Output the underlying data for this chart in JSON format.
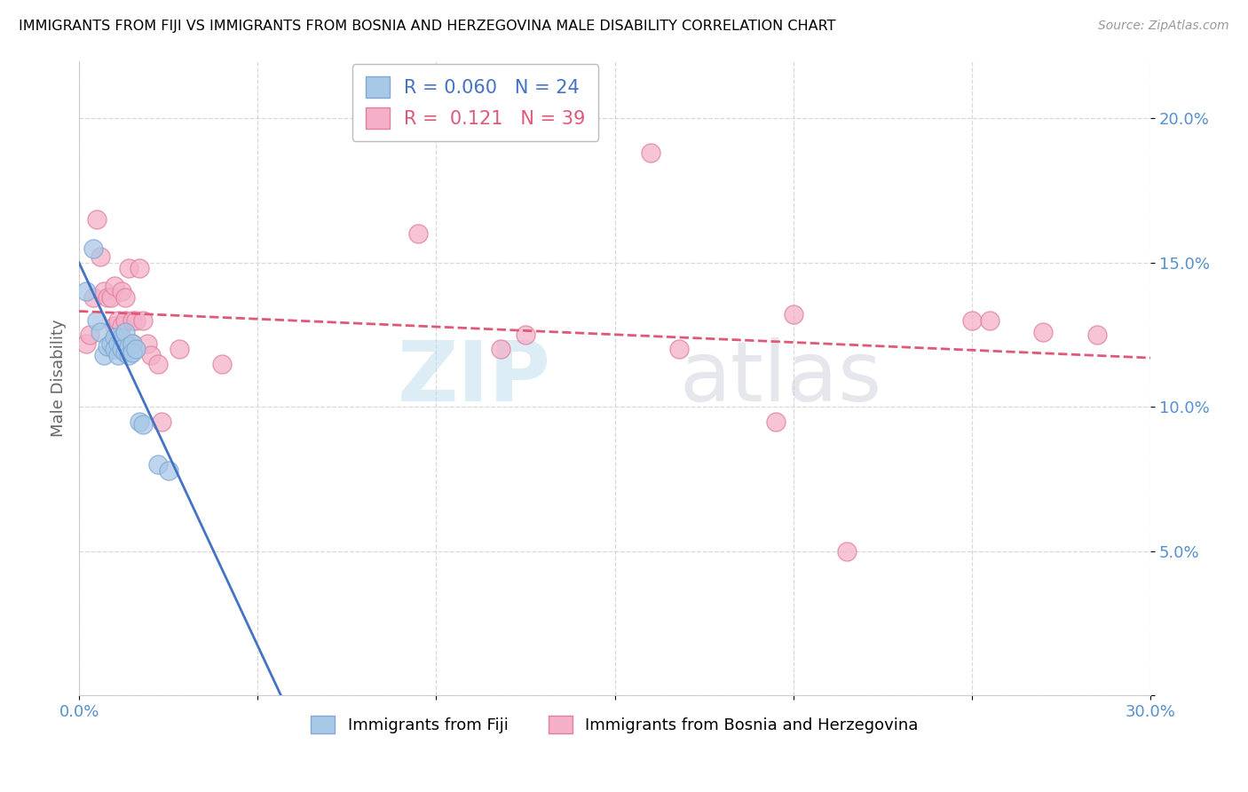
{
  "title": "IMMIGRANTS FROM FIJI VS IMMIGRANTS FROM BOSNIA AND HERZEGOVINA MALE DISABILITY CORRELATION CHART",
  "source": "Source: ZipAtlas.com",
  "ylabel": "Male Disability",
  "xlim": [
    0.0,
    0.3
  ],
  "ylim": [
    0.0,
    0.22
  ],
  "xtick_positions": [
    0.0,
    0.05,
    0.1,
    0.15,
    0.2,
    0.25,
    0.3
  ],
  "xtick_labels": [
    "0.0%",
    "",
    "",
    "",
    "",
    "",
    "30.0%"
  ],
  "ytick_positions": [
    0.0,
    0.05,
    0.1,
    0.15,
    0.2
  ],
  "ytick_labels": [
    "",
    "5.0%",
    "10.0%",
    "15.0%",
    "20.0%"
  ],
  "legend_fiji_r": "0.060",
  "legend_fiji_n": "24",
  "legend_bh_r": "0.121",
  "legend_bh_n": "39",
  "fiji_color": "#a8c8e8",
  "fiji_edge_color": "#80a8d0",
  "bh_color": "#f4b0c8",
  "bh_edge_color": "#e080a0",
  "fiji_line_color": "#4472c4",
  "bh_line_color": "#e05878",
  "tick_color": "#5590d0",
  "background_color": "#ffffff",
  "grid_color": "#d8d8d8",
  "fiji_x": [
    0.002,
    0.004,
    0.005,
    0.006,
    0.007,
    0.008,
    0.009,
    0.01,
    0.01,
    0.011,
    0.011,
    0.012,
    0.012,
    0.013,
    0.013,
    0.014,
    0.014,
    0.015,
    0.015,
    0.016,
    0.017,
    0.018,
    0.022,
    0.025
  ],
  "fiji_y": [
    0.14,
    0.155,
    0.13,
    0.126,
    0.118,
    0.121,
    0.122,
    0.124,
    0.12,
    0.122,
    0.118,
    0.124,
    0.12,
    0.119,
    0.126,
    0.121,
    0.118,
    0.122,
    0.119,
    0.12,
    0.095,
    0.094,
    0.08,
    0.078
  ],
  "bh_x": [
    0.002,
    0.003,
    0.004,
    0.005,
    0.006,
    0.007,
    0.008,
    0.009,
    0.01,
    0.01,
    0.011,
    0.012,
    0.012,
    0.013,
    0.013,
    0.014,
    0.015,
    0.015,
    0.016,
    0.017,
    0.018,
    0.019,
    0.02,
    0.022,
    0.023,
    0.028,
    0.04,
    0.095,
    0.118,
    0.125,
    0.16,
    0.168,
    0.195,
    0.2,
    0.215,
    0.25,
    0.255,
    0.27,
    0.285
  ],
  "bh_y": [
    0.122,
    0.125,
    0.138,
    0.165,
    0.152,
    0.14,
    0.138,
    0.138,
    0.128,
    0.142,
    0.13,
    0.128,
    0.14,
    0.138,
    0.13,
    0.148,
    0.13,
    0.122,
    0.13,
    0.148,
    0.13,
    0.122,
    0.118,
    0.115,
    0.095,
    0.12,
    0.115,
    0.16,
    0.12,
    0.125,
    0.188,
    0.12,
    0.095,
    0.132,
    0.05,
    0.13,
    0.13,
    0.126,
    0.125
  ]
}
